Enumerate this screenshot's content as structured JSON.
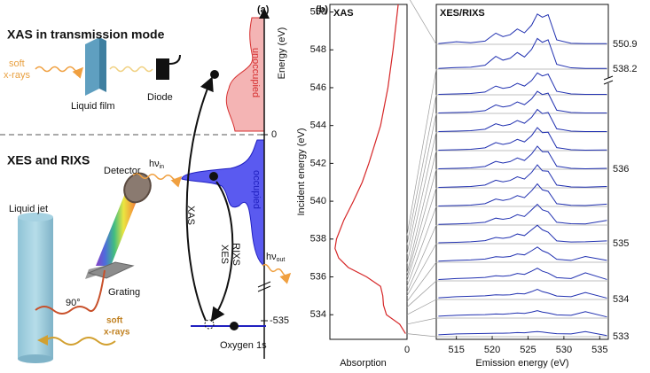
{
  "panel_a": {
    "label": "(a)",
    "xas_title": "XAS in transmission mode",
    "soft_1": "soft",
    "xrays_1": "x-rays",
    "film": "Liquid film",
    "diode": "Diode",
    "xes_title": "XES and RIXS",
    "jet": "Liquid jet",
    "detector": "Detector",
    "grating": "Grating",
    "angle": "90°",
    "soft_2": "soft",
    "xrays_2": "x-rays",
    "energy_axis": "Energy (eV)",
    "tick_zero": "0",
    "tick_core": "-535",
    "unoccupied": "unoccupied",
    "occupied": "occupied",
    "arrow_xas": "XAS",
    "arrow_xes": "XES",
    "arrow_rixs": "RIXS",
    "hv_in": {
      "main": "hν",
      "sub": "in"
    },
    "hv_out": {
      "main": "hν",
      "sub": "out"
    },
    "core_level": "Oxygen 1s"
  },
  "panel_b_label": "(b)",
  "chart_data": [
    {
      "type": "line",
      "title": "XAS",
      "x_label": "Absorption",
      "y_label": "Incident energy (eV)",
      "color": "#d62728",
      "x": [
        0.02,
        0.1,
        0.28,
        0.32,
        0.33,
        0.36,
        0.55,
        0.8,
        0.93,
        0.98,
        0.96,
        0.86,
        0.73,
        0.61,
        0.52,
        0.36,
        0.26,
        0.19,
        0.12
      ],
      "y": [
        533,
        533.5,
        534,
        534.5,
        535,
        535.5,
        536,
        536.5,
        537,
        537.5,
        538,
        539,
        540,
        541,
        542,
        544,
        546,
        548,
        550.4
      ],
      "xlim": [
        1.05,
        0
      ],
      "xticks": [
        0
      ],
      "ylim": [
        532.7,
        550.4
      ],
      "yticks": [
        534,
        536,
        538,
        540,
        542,
        544,
        546,
        548,
        550
      ]
    },
    {
      "type": "stacked-spectra",
      "title": "XES/RIXS",
      "x_label": "Emission energy (eV)",
      "color": "#2030b0",
      "xlim": [
        512.2,
        536.2
      ],
      "xticks": [
        515,
        520,
        525,
        530,
        535
      ],
      "x": [
        512.5,
        515,
        517,
        519,
        520.5,
        521.5,
        522.5,
        523.5,
        524.5,
        525.5,
        526.3,
        527,
        527.8,
        529,
        531,
        533,
        536
      ],
      "rows": [
        {
          "incident": 550.9,
          "labeled": true,
          "values": [
            0.02,
            0.08,
            0.05,
            0.1,
            0.35,
            0.24,
            0.3,
            0.48,
            0.36,
            0.6,
            0.95,
            0.85,
            0.93,
            0.14,
            0.03,
            0.02,
            0.02
          ]
        },
        {
          "incident": 538.2,
          "labeled": true,
          "values": [
            0.02,
            0.05,
            0.06,
            0.12,
            0.4,
            0.28,
            0.34,
            0.52,
            0.38,
            0.62,
            0.96,
            0.84,
            0.92,
            0.15,
            0.04,
            0.02,
            0.02
          ]
        },
        {
          "incident": 537.7,
          "values": [
            0.02,
            0.04,
            0.06,
            0.12,
            0.38,
            0.28,
            0.33,
            0.5,
            0.38,
            0.62,
            0.95,
            0.82,
            0.9,
            0.15,
            0.04,
            0.02,
            0.02
          ]
        },
        {
          "incident": 537.2,
          "values": [
            0.02,
            0.04,
            0.06,
            0.12,
            0.37,
            0.28,
            0.33,
            0.5,
            0.38,
            0.63,
            0.96,
            0.82,
            0.88,
            0.14,
            0.04,
            0.02,
            0.02
          ]
        },
        {
          "incident": 536.7,
          "values": [
            0.02,
            0.04,
            0.06,
            0.12,
            0.36,
            0.27,
            0.33,
            0.5,
            0.38,
            0.64,
            0.98,
            0.8,
            0.85,
            0.14,
            0.04,
            0.02,
            0.02
          ]
        },
        {
          "incident": 536.2,
          "values": [
            0.02,
            0.04,
            0.06,
            0.12,
            0.35,
            0.27,
            0.33,
            0.49,
            0.38,
            0.65,
            1.0,
            0.78,
            0.8,
            0.13,
            0.04,
            0.02,
            0.03
          ]
        },
        {
          "incident": 536,
          "labeled": true,
          "values": [
            0.02,
            0.04,
            0.06,
            0.12,
            0.34,
            0.27,
            0.33,
            0.49,
            0.38,
            0.66,
            1.0,
            0.76,
            0.76,
            0.13,
            0.04,
            0.02,
            0.04
          ]
        },
        {
          "incident": 535.8,
          "values": [
            0.02,
            0.04,
            0.06,
            0.12,
            0.33,
            0.26,
            0.32,
            0.48,
            0.38,
            0.67,
            1.0,
            0.74,
            0.72,
            0.12,
            0.04,
            0.03,
            0.06
          ]
        },
        {
          "incident": 535.5,
          "values": [
            0.02,
            0.04,
            0.06,
            0.12,
            0.32,
            0.26,
            0.32,
            0.47,
            0.38,
            0.68,
            0.98,
            0.72,
            0.66,
            0.12,
            0.05,
            0.04,
            0.1
          ]
        },
        {
          "incident": 535.2,
          "values": [
            0.03,
            0.05,
            0.07,
            0.12,
            0.3,
            0.25,
            0.3,
            0.45,
            0.37,
            0.66,
            0.9,
            0.66,
            0.58,
            0.12,
            0.06,
            0.05,
            0.2
          ]
        },
        {
          "incident": 535,
          "labeled": true,
          "values": [
            0.04,
            0.06,
            0.08,
            0.13,
            0.27,
            0.23,
            0.28,
            0.42,
            0.35,
            0.6,
            0.8,
            0.6,
            0.5,
            0.12,
            0.07,
            0.08,
            0.12
          ]
        },
        {
          "incident": 534.7,
          "values": [
            0.05,
            0.08,
            0.1,
            0.14,
            0.24,
            0.22,
            0.25,
            0.36,
            0.32,
            0.5,
            0.66,
            0.5,
            0.4,
            0.13,
            0.08,
            0.25,
            0.08
          ]
        },
        {
          "incident": 534.4,
          "values": [
            0.06,
            0.1,
            0.12,
            0.15,
            0.22,
            0.2,
            0.23,
            0.32,
            0.28,
            0.42,
            0.55,
            0.42,
            0.34,
            0.14,
            0.1,
            0.35,
            0.06
          ]
        },
        {
          "incident": 534,
          "labeled": true,
          "values": [
            0.07,
            0.12,
            0.14,
            0.16,
            0.2,
            0.19,
            0.2,
            0.26,
            0.24,
            0.34,
            0.44,
            0.34,
            0.28,
            0.15,
            0.12,
            0.3,
            0.06
          ]
        },
        {
          "incident": 533.5,
          "values": [
            0.08,
            0.12,
            0.14,
            0.15,
            0.18,
            0.17,
            0.19,
            0.22,
            0.2,
            0.26,
            0.32,
            0.26,
            0.22,
            0.14,
            0.12,
            0.28,
            0.05
          ]
        },
        {
          "incident": 533,
          "labeled": true,
          "values": [
            0.08,
            0.12,
            0.13,
            0.14,
            0.15,
            0.15,
            0.16,
            0.18,
            0.17,
            0.2,
            0.22,
            0.2,
            0.17,
            0.13,
            0.12,
            0.22,
            0.05
          ]
        }
      ]
    }
  ]
}
